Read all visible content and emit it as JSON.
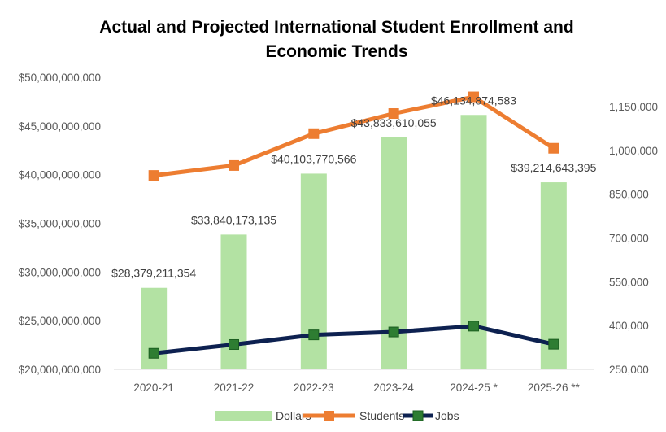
{
  "chart_data": {
    "type": "bar",
    "title_lines": [
      "Actual and Projected International Student Enrollment and",
      "Economic Trends"
    ],
    "categories": [
      "2020-21",
      "2021-22",
      "2022-23",
      "2023-24",
      "2024-25 *",
      "2025-26 **"
    ],
    "series": [
      {
        "name": "Dollars",
        "type": "bar",
        "axis": "left",
        "color": "#b3e2a3",
        "values": [
          28379211354,
          33840173135,
          40103770566,
          43833610055,
          46134874583,
          39214643395
        ],
        "data_labels": [
          "$28,379,211,354",
          "$33,840,173,135",
          "$40,103,770,566",
          "$43,833,610,055",
          "$46,134,874,583",
          "$39,214,643,395"
        ]
      },
      {
        "name": "Students",
        "type": "line",
        "axis": "right",
        "color": "#ed7d31",
        "values": [
          914000,
          948000,
          1057000,
          1126000,
          1183000,
          1007000
        ]
      },
      {
        "name": "Jobs",
        "type": "line",
        "axis": "right",
        "color": "#0d2150",
        "marker_color": "#2e7d32",
        "values": [
          305000,
          335000,
          368000,
          378000,
          398000,
          336000
        ]
      }
    ],
    "y_left": {
      "min": 20000000000,
      "max": 50000000000,
      "ticks": [
        20000000000,
        25000000000,
        30000000000,
        35000000000,
        40000000000,
        45000000000,
        50000000000
      ],
      "tick_labels": [
        "$20,000,000,000",
        "$25,000,000,000",
        "$30,000,000,000",
        "$35,000,000,000",
        "$40,000,000,000",
        "$45,000,000,000",
        "$50,000,000,000"
      ]
    },
    "y_right": {
      "min": 250000,
      "max": 1250000,
      "ticks": [
        250000,
        400000,
        550000,
        700000,
        850000,
        1000000,
        1150000
      ],
      "tick_labels": [
        "250,000",
        "400,000",
        "550,000",
        "700,000",
        "850,000",
        "1,000,000",
        "1,150,000"
      ]
    },
    "grid": false,
    "legend_position": "bottom"
  }
}
